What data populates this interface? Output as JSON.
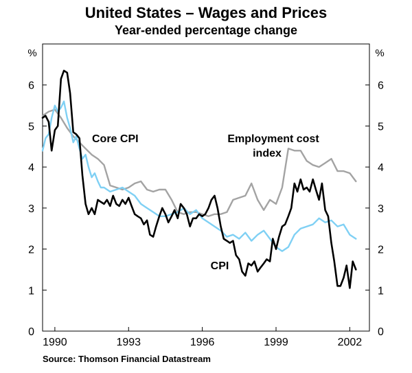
{
  "chart_data": {
    "type": "line",
    "title": "United States – Wages and Prices",
    "subtitle": "Year-ended percentage change",
    "ylabel_left": "%",
    "ylabel_right": "%",
    "ylim": [
      0,
      7
    ],
    "xlim": [
      1989.5,
      2002.8
    ],
    "y_ticks": [
      0,
      1,
      2,
      3,
      4,
      5,
      6
    ],
    "x_ticks": [
      1990,
      1993,
      1996,
      1999,
      2002
    ],
    "source": "Source: Thomson Financial Datastream",
    "series": [
      {
        "name": "Employment cost index",
        "label_lines": [
          "Employment cost",
          "index"
        ],
        "color": "#a3a3a3",
        "x": [
          1989.5,
          1989.75,
          1990.0,
          1990.25,
          1990.5,
          1990.75,
          1991.0,
          1991.25,
          1991.5,
          1991.75,
          1992.0,
          1992.25,
          1992.5,
          1992.75,
          1993.0,
          1993.25,
          1993.5,
          1993.75,
          1994.0,
          1994.25,
          1994.5,
          1994.75,
          1995.0,
          1995.25,
          1995.5,
          1995.75,
          1996.0,
          1996.25,
          1996.5,
          1996.75,
          1997.0,
          1997.25,
          1997.5,
          1997.75,
          1998.0,
          1998.25,
          1998.5,
          1998.75,
          1999.0,
          1999.25,
          1999.5,
          1999.75,
          2000.0,
          2000.25,
          2000.5,
          2000.75,
          2001.0,
          2001.25,
          2001.5,
          2001.75,
          2002.0,
          2002.25
        ],
        "values": [
          5.25,
          5.35,
          5.4,
          5.2,
          4.95,
          4.75,
          4.6,
          4.45,
          4.3,
          4.2,
          4.05,
          3.55,
          3.5,
          3.45,
          3.5,
          3.6,
          3.65,
          3.45,
          3.4,
          3.45,
          3.45,
          3.2,
          2.9,
          2.85,
          2.9,
          2.9,
          2.85,
          2.8,
          2.85,
          2.85,
          2.9,
          3.2,
          3.25,
          3.3,
          3.6,
          3.2,
          2.95,
          3.2,
          3.1,
          3.5,
          4.45,
          4.4,
          4.4,
          4.15,
          4.05,
          4.0,
          4.1,
          4.2,
          3.9,
          3.9,
          3.85,
          3.65
        ]
      },
      {
        "name": "Core CPI",
        "color": "#7fd0f4",
        "x": [
          1989.5,
          1989.62,
          1989.75,
          1989.87,
          1990.0,
          1990.12,
          1990.25,
          1990.37,
          1990.5,
          1990.62,
          1990.75,
          1990.87,
          1991.0,
          1991.12,
          1991.25,
          1991.37,
          1991.5,
          1991.62,
          1991.75,
          1991.87,
          1992.0,
          1992.25,
          1992.5,
          1992.75,
          1993.0,
          1993.25,
          1993.5,
          1993.75,
          1994.0,
          1994.25,
          1994.5,
          1994.75,
          1995.0,
          1995.25,
          1995.5,
          1995.75,
          1996.0,
          1996.25,
          1996.5,
          1996.75,
          1997.0,
          1997.25,
          1997.5,
          1997.75,
          1998.0,
          1998.25,
          1998.5,
          1998.75,
          1999.0,
          1999.25,
          1999.5,
          1999.75,
          2000.0,
          2000.25,
          2000.5,
          2000.75,
          2001.0,
          2001.25,
          2001.5,
          2001.75,
          2002.0,
          2002.25
        ],
        "values": [
          4.4,
          4.7,
          4.8,
          5.2,
          5.5,
          5.35,
          5.45,
          5.6,
          5.2,
          4.95,
          4.6,
          4.75,
          4.45,
          4.2,
          4.3,
          4.0,
          3.75,
          3.85,
          3.65,
          3.5,
          3.5,
          3.4,
          3.45,
          3.5,
          3.4,
          3.3,
          3.1,
          3.0,
          2.9,
          2.8,
          2.8,
          2.85,
          2.9,
          3.0,
          2.85,
          2.95,
          2.75,
          2.65,
          2.55,
          2.45,
          2.3,
          2.35,
          2.25,
          2.4,
          2.2,
          2.35,
          2.45,
          2.25,
          2.05,
          1.95,
          2.05,
          2.35,
          2.5,
          2.55,
          2.6,
          2.75,
          2.65,
          2.7,
          2.55,
          2.6,
          2.35,
          2.25
        ]
      },
      {
        "name": "CPI",
        "color": "#000000",
        "x": [
          1989.5,
          1989.62,
          1989.75,
          1989.87,
          1990.0,
          1990.12,
          1990.25,
          1990.37,
          1990.5,
          1990.62,
          1990.75,
          1990.87,
          1991.0,
          1991.12,
          1991.25,
          1991.37,
          1991.5,
          1991.62,
          1991.75,
          1991.87,
          1992.0,
          1992.12,
          1992.25,
          1992.37,
          1992.5,
          1992.62,
          1992.75,
          1992.87,
          1993.0,
          1993.12,
          1993.25,
          1993.37,
          1993.5,
          1993.62,
          1993.75,
          1993.87,
          1994.0,
          1994.12,
          1994.25,
          1994.37,
          1994.5,
          1994.62,
          1994.75,
          1994.87,
          1995.0,
          1995.12,
          1995.25,
          1995.37,
          1995.5,
          1995.62,
          1995.75,
          1995.87,
          1996.0,
          1996.12,
          1996.25,
          1996.37,
          1996.5,
          1996.62,
          1996.75,
          1996.87,
          1997.0,
          1997.12,
          1997.25,
          1997.37,
          1997.5,
          1997.62,
          1997.75,
          1997.87,
          1998.0,
          1998.12,
          1998.25,
          1998.37,
          1998.5,
          1998.62,
          1998.75,
          1998.87,
          1999.0,
          1999.12,
          1999.25,
          1999.37,
          1999.5,
          1999.62,
          1999.75,
          1999.87,
          2000.0,
          2000.12,
          2000.25,
          2000.37,
          2000.5,
          2000.62,
          2000.75,
          2000.87,
          2001.0,
          2001.12,
          2001.25,
          2001.37,
          2001.5,
          2001.62,
          2001.75,
          2001.87,
          2002.0,
          2002.12,
          2002.25
        ],
        "values": [
          5.2,
          5.25,
          5.1,
          4.4,
          4.9,
          5.0,
          6.15,
          6.35,
          6.3,
          5.8,
          4.85,
          4.8,
          4.7,
          3.8,
          3.1,
          2.85,
          3.0,
          2.85,
          3.2,
          3.15,
          3.1,
          3.2,
          3.05,
          3.3,
          3.1,
          3.05,
          3.2,
          3.1,
          3.25,
          3.05,
          2.85,
          2.8,
          2.75,
          2.6,
          2.7,
          2.35,
          2.3,
          2.55,
          2.8,
          3.0,
          2.85,
          2.65,
          2.8,
          2.95,
          2.75,
          3.1,
          3.0,
          2.85,
          2.55,
          2.75,
          2.75,
          2.85,
          2.8,
          2.85,
          3.0,
          3.2,
          3.3,
          3.0,
          2.55,
          2.25,
          2.2,
          2.15,
          2.2,
          1.85,
          1.75,
          1.45,
          1.35,
          1.65,
          1.6,
          1.7,
          1.45,
          1.55,
          1.65,
          1.75,
          1.7,
          2.25,
          2.0,
          2.3,
          2.55,
          2.6,
          2.8,
          3.0,
          3.6,
          3.4,
          3.7,
          3.45,
          3.5,
          3.4,
          3.7,
          3.45,
          3.2,
          3.6,
          2.95,
          2.8,
          2.15,
          1.7,
          1.1,
          1.1,
          1.3,
          1.6,
          1.05,
          1.7,
          1.5
        ]
      }
    ]
  }
}
